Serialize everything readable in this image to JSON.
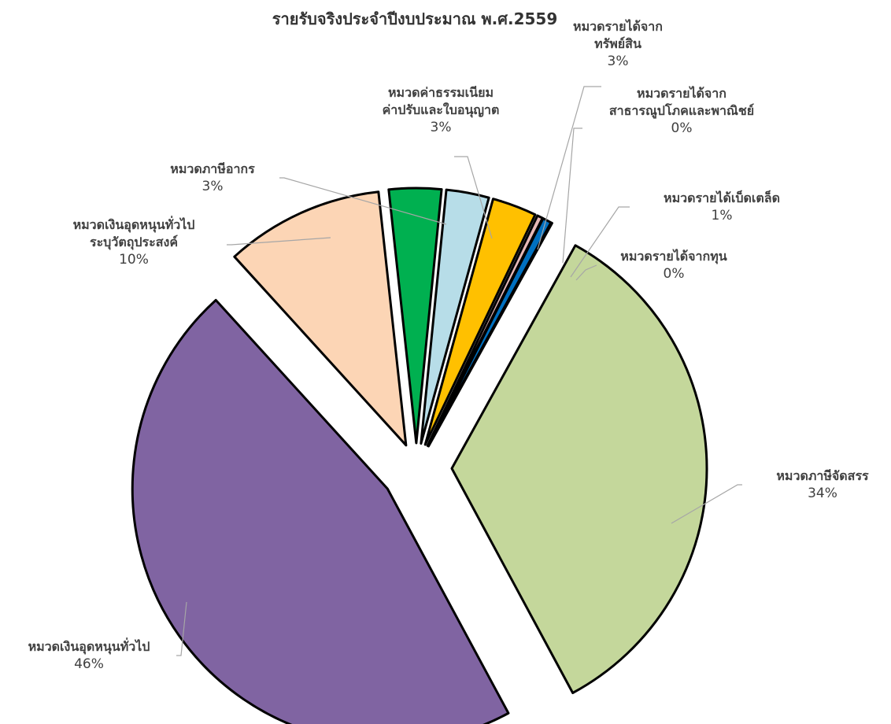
{
  "chart_data": {
    "type": "pie",
    "title": "รายรับจริงประจำปีงบประมาณ พ.ศ.2559",
    "slices": [
      {
        "name": "หมวดภาษีจัดสรร",
        "value": 34,
        "label_lines": [
          "หมวดภาษีจัดสรร"
        ],
        "pct_label": "34%",
        "color": "#c4d79b"
      },
      {
        "name": "หมวดเงินอุดหนุนทั่วไป",
        "value": 46,
        "label_lines": [
          "หมวดเงินอุดหนุนทั่วไป"
        ],
        "pct_label": "46%",
        "color": "#8064a2"
      },
      {
        "name": "หมวดเงินอุดหนุนทั่วไประบุวัตถุประสงค์",
        "value": 10,
        "label_lines": [
          "หมวดเงินอุดหนุนทั่วไป",
          "ระบุวัตถุประสงค์"
        ],
        "pct_label": "10%",
        "color": "#fcd5b5"
      },
      {
        "name": "หมวดภาษีอากร",
        "value": 3.3,
        "label_lines": [
          "หมวดภาษีอากร"
        ],
        "pct_label": "3%",
        "color": "#00b050"
      },
      {
        "name": "หมวดค่าธรรมเนียมค่าปรับและใบอนุญาต",
        "value": 2.7,
        "label_lines": [
          "หมวดค่าธรรมเนียม",
          "ค่าปรับและใบอนุญาต"
        ],
        "pct_label": "3%",
        "color": "#b7dde8"
      },
      {
        "name": "หมวดรายได้จากทรัพย์สิน",
        "value": 2.8,
        "label_lines": [
          "หมวดรายได้จาก",
          "ทรัพย์สิน"
        ],
        "pct_label": "3%",
        "color": "#ffc000"
      },
      {
        "name": "หมวดรายได้จากสาธารณูปโภคและพาณิชย์",
        "value": 0.35,
        "label_lines": [
          "หมวดรายได้จาก",
          "สาธารณูปโภคและพาณิชย์"
        ],
        "pct_label": "0%",
        "color": "#e6b9b8"
      },
      {
        "name": "หมวดรายได้เบ็ดเตล็ด",
        "value": 0.55,
        "label_lines": [
          "หมวดรายได้เบ็ดเตล็ด"
        ],
        "pct_label": "1%",
        "color": "#0070c0"
      },
      {
        "name": "หมวดรายได้จากทุน",
        "value": 0.05,
        "label_lines": [
          "หมวดรายได้จากทุน"
        ],
        "pct_label": "0%",
        "color": "#000000"
      }
    ]
  }
}
